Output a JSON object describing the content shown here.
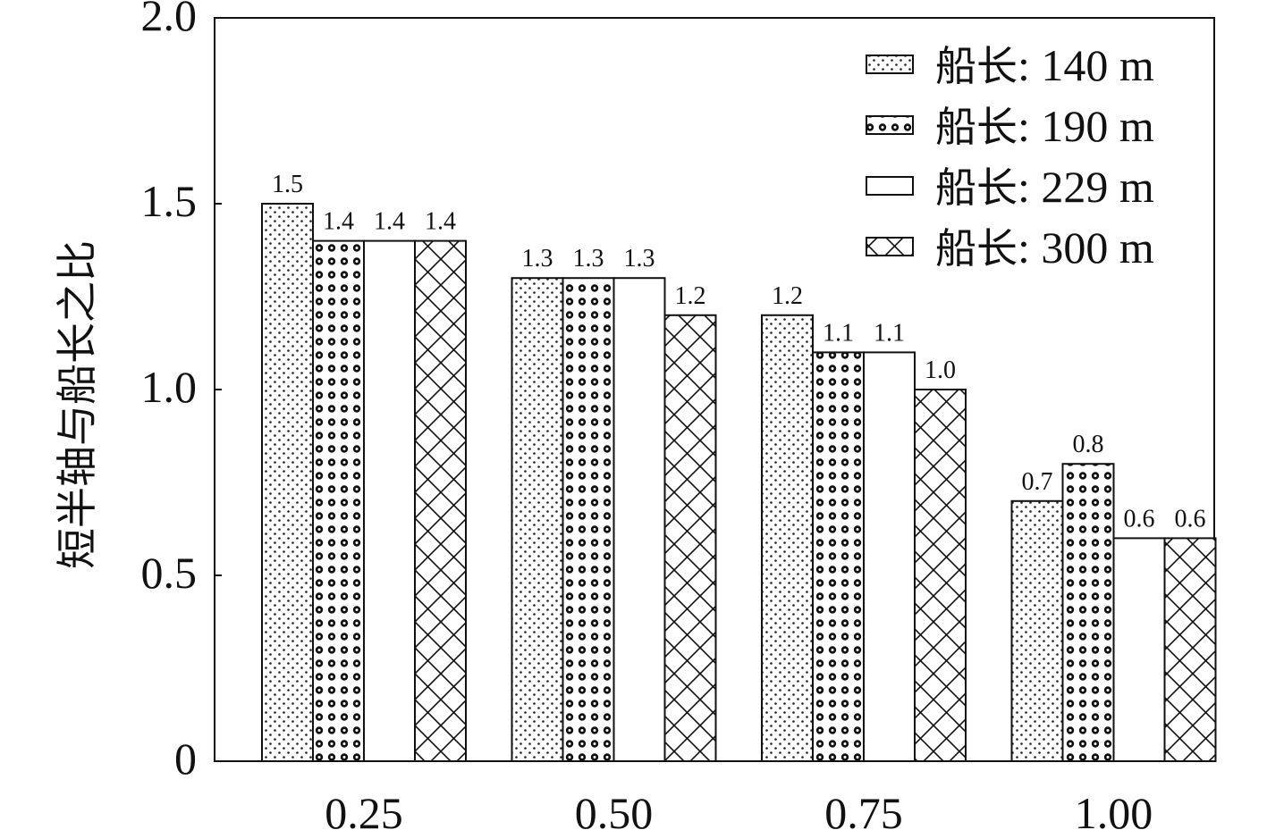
{
  "chart_data": {
    "type": "bar",
    "title": "",
    "xlabel": "",
    "ylabel": "短半轴与船长之比",
    "categories": [
      "0.25",
      "0.50",
      "0.75",
      "1.00"
    ],
    "ylim": [
      0,
      2.0
    ],
    "yticks": [
      "0",
      "0.5",
      "1.0",
      "1.5",
      "2.0"
    ],
    "grid": false,
    "legend_position": "top-right",
    "series": [
      {
        "name": "船长: 140 m",
        "pattern": "fine-dots",
        "values": [
          1.5,
          1.3,
          1.2,
          0.7
        ],
        "labels": [
          "1.5",
          "1.3",
          "1.2",
          "0.7"
        ]
      },
      {
        "name": "船长: 190 m",
        "pattern": "ring-dots",
        "values": [
          1.4,
          1.3,
          1.1,
          0.8
        ],
        "labels": [
          "1.4",
          "1.3",
          "1.1",
          "0.8"
        ]
      },
      {
        "name": "船长: 229 m",
        "pattern": "blank",
        "values": [
          1.4,
          1.3,
          1.1,
          0.6
        ],
        "labels": [
          "1.4",
          "1.3",
          "1.1",
          "0.6"
        ]
      },
      {
        "name": "船长: 300 m",
        "pattern": "crosshatch",
        "values": [
          1.4,
          1.2,
          1.0,
          0.6
        ],
        "labels": [
          "1.4",
          "1.2",
          "1.0",
          "0.6"
        ]
      }
    ]
  }
}
